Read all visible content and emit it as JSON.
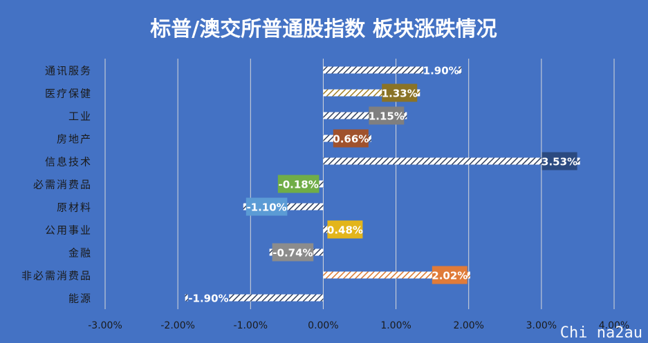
{
  "chart_data": {
    "type": "bar",
    "orientation": "horizontal",
    "title": "标普/澳交所普通股指数 板块涨跌情况",
    "categories": [
      "通讯服务",
      "医疗保健",
      "工业",
      "房地产",
      "信息技术",
      "必需消费品",
      "原材料",
      "公用事业",
      "金融",
      "非必需消费品",
      "能源"
    ],
    "values": [
      1.9,
      1.33,
      1.15,
      0.66,
      3.53,
      -0.18,
      -1.1,
      0.48,
      -0.74,
      2.02,
      -1.9
    ],
    "data_labels": [
      "1.90%",
      "1.33%",
      "1.15%",
      "0.66%",
      "3.53%",
      "-0.18%",
      "-1.10%",
      "0.48%",
      "-0.74%",
      "2.02%",
      "-1.90%"
    ],
    "label_colors": [
      "#4472c4",
      "#8a7326",
      "#7f7f7f",
      "#a0522d",
      "#2b4a80",
      "#70ad47",
      "#5b9bd5",
      "#e3b51b",
      "#8c8c8c",
      "#e07b39",
      "#4472c4"
    ],
    "xlim": [
      -3.0,
      4.0
    ],
    "xticks": [
      "-3.00%",
      "-2.00%",
      "-1.00%",
      "0.00%",
      "1.00%",
      "2.00%",
      "3.00%",
      "4.00%"
    ],
    "xtick_values": [
      -3,
      -2,
      -1,
      0,
      1,
      2,
      3,
      4
    ],
    "grid": true,
    "legend": "none",
    "xlabel": "",
    "ylabel": ""
  },
  "watermark": "Chi na2au",
  "colors": {
    "background": "#4472c4",
    "grid": "#d9d9d9",
    "text": "#1a1a1a",
    "title": "#ffffff",
    "bar_hatch": "#2f3e5c",
    "bar_base": "#ffffff"
  }
}
